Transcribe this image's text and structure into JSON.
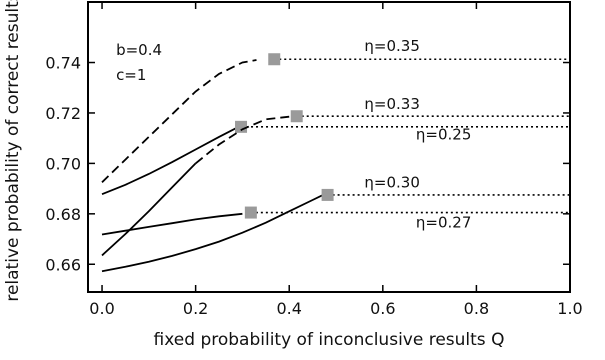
{
  "chart_data": {
    "type": "line",
    "xlabel": "fixed probability of inconclusive results Q",
    "ylabel": "relative probability of correct results",
    "xlim": [
      -0.03,
      1.0
    ],
    "ylim": [
      0.649,
      0.764
    ],
    "xticks": [
      0.0,
      0.2,
      0.4,
      0.6,
      0.8,
      1.0
    ],
    "xtick_labels": [
      "0.0",
      "0.2",
      "0.4",
      "0.6",
      "0.8",
      "1.0"
    ],
    "yticks": [
      0.66,
      0.68,
      0.7,
      0.72,
      0.74
    ],
    "ytick_labels": [
      "0.66",
      "0.68",
      "0.70",
      "0.72",
      "0.74"
    ],
    "grid": false,
    "annotations": [
      {
        "text": "b=0.4",
        "x": 0.03,
        "y": 0.743
      },
      {
        "text": "c=1",
        "x": 0.03,
        "y": 0.733
      },
      {
        "text": "η=0.35",
        "x": 0.62,
        "y": 0.7445,
        "anchor": "middle"
      },
      {
        "text": "η=0.33",
        "x": 0.62,
        "y": 0.7215,
        "anchor": "middle"
      },
      {
        "text": "η=0.25",
        "x": 0.73,
        "y": 0.7095,
        "anchor": "middle"
      },
      {
        "text": "η=0.30",
        "x": 0.62,
        "y": 0.6905,
        "anchor": "middle"
      },
      {
        "text": "η=0.27",
        "x": 0.73,
        "y": 0.6745,
        "anchor": "middle"
      }
    ],
    "series": [
      {
        "name": "η=0.35",
        "style": "dashed",
        "x": [
          0.0,
          0.05,
          0.1,
          0.15,
          0.2,
          0.25,
          0.3,
          0.33
        ],
        "y": [
          0.6925,
          0.7015,
          0.7105,
          0.7195,
          0.7285,
          0.7355,
          0.74,
          0.741
        ],
        "corner": [
          0.368,
          0.7413
        ],
        "plateau": 0.7413
      },
      {
        "name": "η=0.25",
        "style": "solid",
        "x": [
          0.0,
          0.05,
          0.1,
          0.15,
          0.2,
          0.25,
          0.29
        ],
        "y": [
          0.6878,
          0.6915,
          0.6958,
          0.7005,
          0.7055,
          0.7105,
          0.7143
        ],
        "corner": [
          0.297,
          0.7145
        ],
        "plateau": 0.7145
      },
      {
        "name": "η=0.33",
        "style": "solid+dashed",
        "x": [
          0.0,
          0.05,
          0.1,
          0.15,
          0.2,
          0.25,
          0.3,
          0.35,
          0.4
        ],
        "y": [
          0.6635,
          0.672,
          0.681,
          0.6905,
          0.7,
          0.7075,
          0.7135,
          0.7175,
          0.7185
        ],
        "dash_from_x": 0.2,
        "corner": [
          0.416,
          0.7187
        ],
        "plateau": 0.7187
      },
      {
        "name": "η=0.27",
        "style": "solid",
        "x": [
          0.0,
          0.05,
          0.1,
          0.15,
          0.2,
          0.25,
          0.3
        ],
        "y": [
          0.6718,
          0.6733,
          0.6748,
          0.6763,
          0.6778,
          0.679,
          0.68
        ],
        "corner": [
          0.318,
          0.6805
        ],
        "plateau": 0.6805
      },
      {
        "name": "η=0.30",
        "style": "solid",
        "x": [
          0.0,
          0.05,
          0.1,
          0.15,
          0.2,
          0.25,
          0.3,
          0.35,
          0.4,
          0.45,
          0.47
        ],
        "y": [
          0.6572,
          0.659,
          0.661,
          0.6633,
          0.666,
          0.669,
          0.6725,
          0.6765,
          0.681,
          0.6855,
          0.6873
        ],
        "corner": [
          0.482,
          0.6875
        ],
        "plateau": 0.6875
      }
    ]
  }
}
